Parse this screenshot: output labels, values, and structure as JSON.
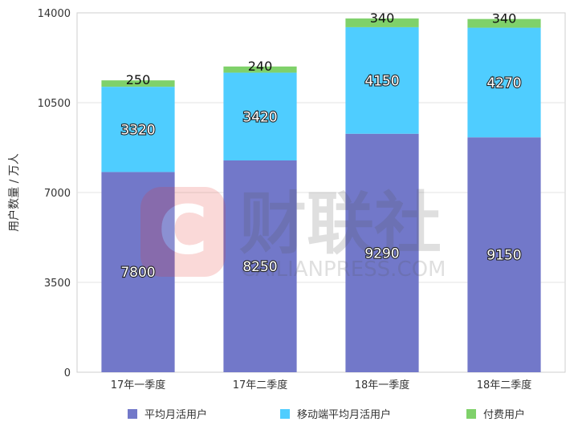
{
  "chart_data": {
    "type": "bar",
    "stacked": true,
    "categories": [
      "17年一季度",
      "17年二季度",
      "18年一季度",
      "18年二季度"
    ],
    "series": [
      {
        "name": "平均月活用户",
        "values": [
          7800,
          8250,
          9290,
          9150
        ],
        "color": "#7278c9"
      },
      {
        "name": "移动端平均月活用户",
        "values": [
          3320,
          3420,
          4150,
          4270
        ],
        "color": "#4fcdff"
      },
      {
        "name": "付费用户",
        "values": [
          250,
          240,
          340,
          340
        ],
        "color": "#7fd16a"
      }
    ],
    "value_labels": {
      "s0": [
        "7800",
        "8250",
        "9290",
        "9150"
      ],
      "s1": [
        "3320",
        "3420",
        "4150",
        "4270"
      ],
      "s2": [
        "250",
        "240",
        "340",
        "340"
      ]
    },
    "ylabel": "用户数量 / 万人",
    "ylim": [
      0,
      14000
    ],
    "yticks": [
      0,
      3500,
      7000,
      10500,
      14000
    ],
    "ytick_labels": [
      "0",
      "3500",
      "7000",
      "10500",
      "14000"
    ],
    "grid": true,
    "legend_position": "bottom"
  },
  "watermark": {
    "text": "财联社",
    "subtext": "CAILIANPRESS.COM",
    "logo_letter": "C"
  }
}
